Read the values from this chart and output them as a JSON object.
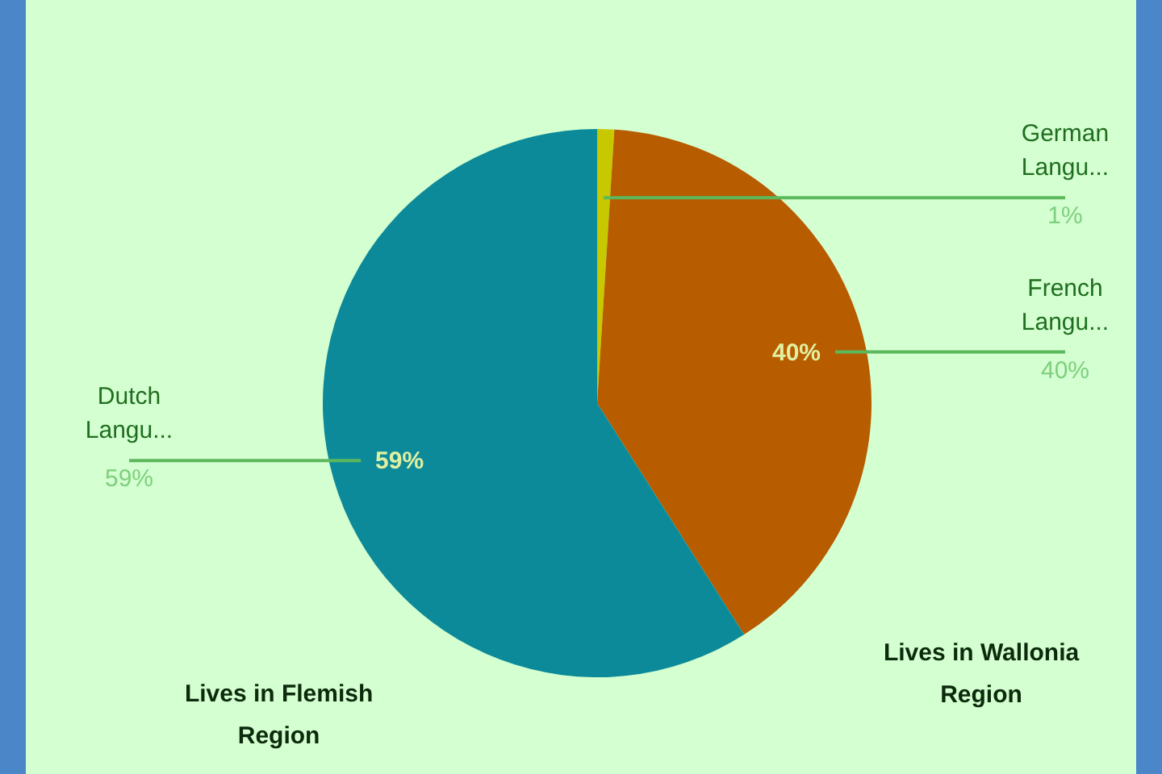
{
  "chart_data": {
    "type": "pie",
    "categories": [
      "German Langu...",
      "French Langu...",
      "Dutch Langu..."
    ],
    "values": [
      1,
      40,
      59
    ],
    "colors": [
      "#c8c800",
      "#b85c00",
      "#0c8a9a"
    ],
    "value_labels": [
      "1%",
      "40%",
      "59%"
    ],
    "annotations": [
      "Lives in Flemish Region",
      "Lives in Wallonia Region"
    ],
    "legend": false
  }
}
